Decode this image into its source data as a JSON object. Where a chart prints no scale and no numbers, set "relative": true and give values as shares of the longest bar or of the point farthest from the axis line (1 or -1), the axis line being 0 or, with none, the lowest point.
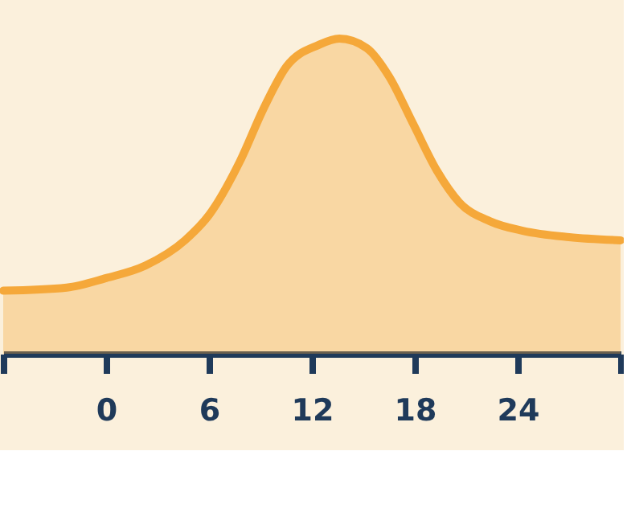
{
  "chart_data": {
    "type": "area",
    "relative": true,
    "x": [
      -6,
      -2.3,
      0,
      2.3,
      4.6,
      6,
      7.8,
      9.2,
      10.5,
      12.4,
      13.6,
      15.2,
      16.5,
      17.9,
      19.3,
      20.6,
      22.4,
      24.3,
      27,
      30
    ],
    "series": [
      {
        "color": "#f5a83a",
        "values": [
          0.2,
          0.21,
          0.24,
          0.28,
          0.36,
          0.44,
          0.61,
          0.78,
          0.91,
          0.98,
          1,
          0.97,
          0.88,
          0.73,
          0.58,
          0.48,
          0.42,
          0.39,
          0.37,
          0.36
        ]
      }
    ],
    "xlim": [
      -6,
      30
    ],
    "xticks": [
      {
        "value": -6,
        "label": null
      },
      0,
      6,
      12,
      18,
      24,
      {
        "value": 30,
        "label": null
      }
    ],
    "grid": false
  }
}
